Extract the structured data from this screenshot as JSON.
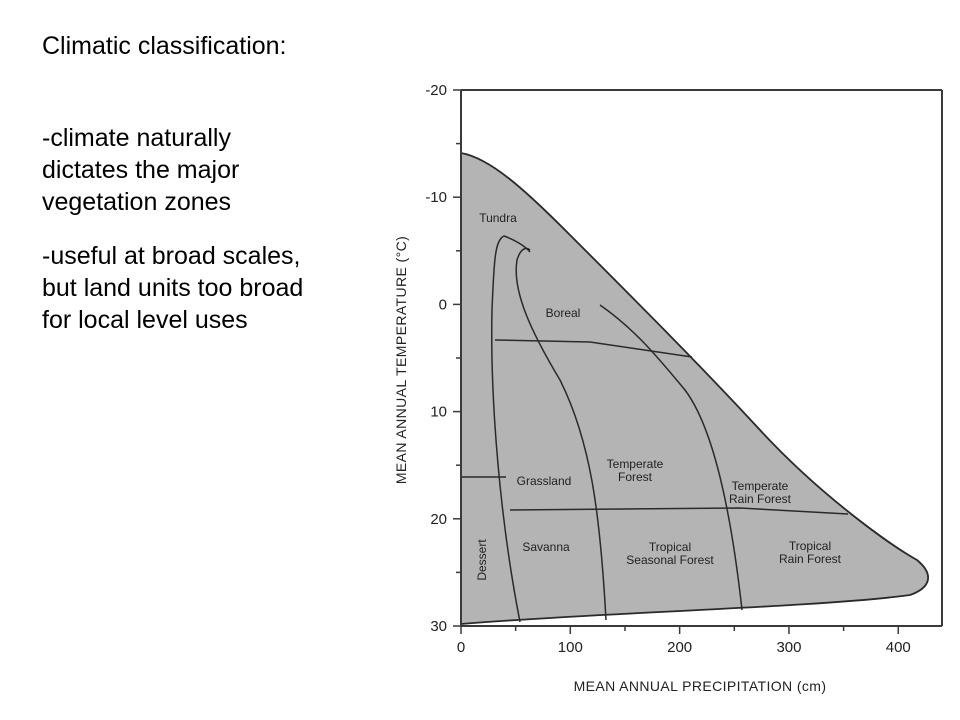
{
  "slide": {
    "title": "Climatic classification:",
    "bullets": [
      "-climate naturally\ndictates the major\nvegetation  zones",
      "-useful at broad scales,\nbut land units too broad\nfor local level uses"
    ]
  },
  "diagram": {
    "x_axis": {
      "label": "MEAN ANNUAL PRECIPITATION (cm)",
      "ticks": [
        {
          "value": 0,
          "label": "0"
        },
        {
          "value": 100,
          "label": "100"
        },
        {
          "value": 200,
          "label": "200"
        },
        {
          "value": 300,
          "label": "300"
        },
        {
          "value": 400,
          "label": "400"
        }
      ],
      "range": [
        0,
        440
      ]
    },
    "y_axis": {
      "label": "MEAN ANNUAL TEMPERATURE (°C)",
      "ticks": [
        {
          "value": -20,
          "label": "-20"
        },
        {
          "value": -10,
          "label": "-10"
        },
        {
          "value": 0,
          "label": "0"
        },
        {
          "value": 10,
          "label": "10"
        },
        {
          "value": 20,
          "label": "20"
        },
        {
          "value": 30,
          "label": "30"
        }
      ],
      "range": [
        -20,
        30
      ]
    },
    "regions": [
      {
        "id": "tundra",
        "lines": [
          "Tundra"
        ]
      },
      {
        "id": "boreal",
        "lines": [
          "Boreal"
        ]
      },
      {
        "id": "grassland",
        "lines": [
          "Grassland"
        ]
      },
      {
        "id": "temperate-forest",
        "lines": [
          "Temperate",
          "Forest"
        ]
      },
      {
        "id": "temperate-rain-forest",
        "lines": [
          "Temperate",
          "Rain Forest"
        ]
      },
      {
        "id": "savanna",
        "lines": [
          "Savanna"
        ]
      },
      {
        "id": "tropical-seasonal-forest",
        "lines": [
          "Tropical",
          "Seasonal Forest"
        ]
      },
      {
        "id": "tropical-rain-forest",
        "lines": [
          "Tropical",
          "Rain Forest"
        ]
      },
      {
        "id": "dessert",
        "lines": [
          "Dessert"
        ]
      }
    ],
    "colors": {
      "fill": "#b4b4b4",
      "line": "#2a2a2a",
      "frame": "#3a3a3a"
    }
  }
}
